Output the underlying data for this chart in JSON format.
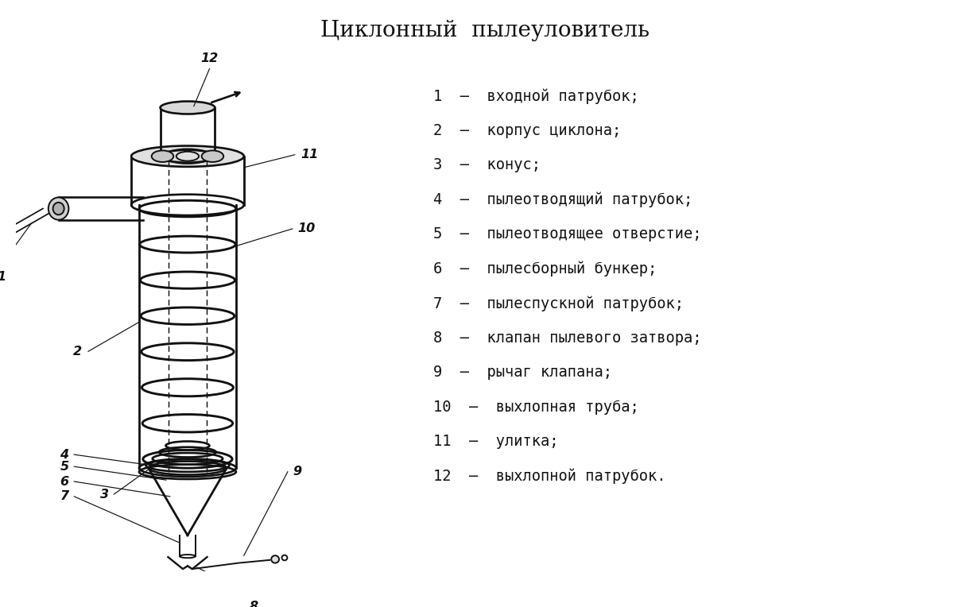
{
  "title": "Циклонный  пылеуловитель",
  "title_fontsize": 20,
  "bg_color": "#ffffff",
  "legend_items": [
    "1  –  входной патрубок;",
    "2  –  корпус циклона;",
    "3  –  конус;",
    "4  –  пылеотводящий патрубок;",
    "5  –  пылеотводящее отверстие;",
    "6  –  пылесборный бункер;",
    "7  –  пылеспускной патрубок;",
    "8  –  клапан пылевого затвора;",
    "9  –  рычаг клапана;",
    "10  –  выхлопная труба;",
    "11  –  улитка;",
    "12  –  выхлопной патрубок."
  ],
  "legend_fontsize": 13.5,
  "draw_color": "#111111",
  "line_width": 1.4
}
